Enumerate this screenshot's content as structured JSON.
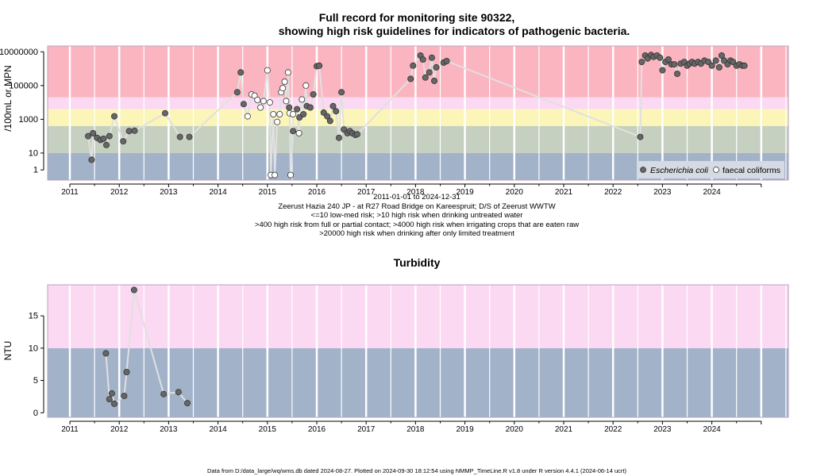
{
  "colors": {
    "low_band": "#a2b2c9",
    "olive_band": "#c5d0c0",
    "yellow_band": "#fbf5b8",
    "pink_band": "#fbd9f2",
    "red_band": "#fbb5c1",
    "grid": "#ffffff",
    "line": "#e0e0e0",
    "ecoli_point": "#666666",
    "faecal_point": "#ffffff",
    "axis": "#000000",
    "frame": "#b9a4bf"
  },
  "chart_data": [
    {
      "type": "scatter",
      "title_line1": "Full record for monitoring site 90322,",
      "title_line2": "showing high risk guidelines for indicators of pathogenic bacteria.",
      "ylabel": "/100mL or MPN",
      "y_scale": "log",
      "xlim": [
        2010.55,
        2025.55
      ],
      "ylim": [
        0.25,
        22000000
      ],
      "yticks": [
        {
          "value": 10000000,
          "label": "10000000"
        },
        {
          "value": 100000,
          "label": "100000"
        },
        {
          "value": 1000,
          "label": "1000"
        },
        {
          "value": 10,
          "label": "10"
        },
        {
          "value": 1,
          "label": "1"
        }
      ],
      "xticks": [
        {
          "value": 2011,
          "label": "2011"
        },
        {
          "value": 2012,
          "label": "2012"
        },
        {
          "value": 2013,
          "label": "2013"
        },
        {
          "value": 2014,
          "label": "2014"
        },
        {
          "value": 2015,
          "label": "2015"
        },
        {
          "value": 2016,
          "label": "2016"
        },
        {
          "value": 2017,
          "label": "2017"
        },
        {
          "value": 2018,
          "label": "2018"
        },
        {
          "value": 2019,
          "label": "2019"
        },
        {
          "value": 2020,
          "label": "2020"
        },
        {
          "value": 2021,
          "label": "2021"
        },
        {
          "value": 2022,
          "label": "2022"
        },
        {
          "value": 2023,
          "label": "2023"
        },
        {
          "value": 2024,
          "label": "2024"
        }
      ],
      "bands": [
        {
          "from": 0.25,
          "to": 10,
          "color": "low_band"
        },
        {
          "from": 10,
          "to": 400,
          "color": "olive_band"
        },
        {
          "from": 400,
          "to": 4000,
          "color": "yellow_band"
        },
        {
          "from": 4000,
          "to": 20000,
          "color": "pink_band"
        },
        {
          "from": 20000,
          "to": 22000000,
          "color": "red_band"
        }
      ],
      "legend_position": "bottom-right",
      "series": [
        {
          "name": "Escherichia coli",
          "marker": "filled",
          "points": [
            [
              2011.37,
              100
            ],
            [
              2011.44,
              4
            ],
            [
              2011.47,
              150
            ],
            [
              2011.55,
              80
            ],
            [
              2011.62,
              60
            ],
            [
              2011.68,
              70
            ],
            [
              2011.74,
              30
            ],
            [
              2011.8,
              100
            ],
            [
              2011.9,
              1500
            ],
            [
              2012.08,
              50
            ],
            [
              2012.2,
              200
            ],
            [
              2012.31,
              210
            ],
            [
              2012.93,
              2300
            ],
            [
              2013.23,
              90
            ],
            [
              2013.42,
              90
            ],
            [
              2014.39,
              40000
            ],
            [
              2014.46,
              600000
            ],
            [
              2014.52,
              8000
            ],
            [
              2015.44,
              5000
            ],
            [
              2015.52,
              200
            ],
            [
              2015.6,
              4000
            ],
            [
              2015.65,
              1300
            ],
            [
              2015.73,
              2000
            ],
            [
              2015.8,
              6000
            ],
            [
              2015.87,
              5000
            ],
            [
              2015.93,
              30000
            ],
            [
              2016.0,
              1400000
            ],
            [
              2016.05,
              1500000
            ],
            [
              2016.14,
              2500
            ],
            [
              2016.21,
              1500
            ],
            [
              2016.27,
              800
            ],
            [
              2016.33,
              6000
            ],
            [
              2016.39,
              3000
            ],
            [
              2016.45,
              80
            ],
            [
              2016.5,
              40000
            ],
            [
              2016.55,
              250
            ],
            [
              2016.62,
              150
            ],
            [
              2016.67,
              200
            ],
            [
              2016.72,
              150
            ],
            [
              2016.78,
              120
            ],
            [
              2016.82,
              130
            ],
            [
              2017.9,
              250000
            ],
            [
              2017.95,
              1500000
            ],
            [
              2018.1,
              6000000
            ],
            [
              2018.15,
              3500000
            ],
            [
              2018.2,
              300000
            ],
            [
              2018.28,
              600000
            ],
            [
              2018.33,
              4500000
            ],
            [
              2018.38,
              190000
            ],
            [
              2018.42,
              1200000
            ],
            [
              2018.57,
              2300000
            ],
            [
              2018.63,
              2800000
            ],
            [
              2022.55,
              90
            ],
            [
              2022.58,
              2500000
            ],
            [
              2022.65,
              6000000
            ],
            [
              2022.7,
              4000000
            ],
            [
              2022.77,
              6500000
            ],
            [
              2022.82,
              5000000
            ],
            [
              2022.89,
              6000000
            ],
            [
              2022.95,
              4500000
            ],
            [
              2023.0,
              800000
            ],
            [
              2023.06,
              2500000
            ],
            [
              2023.12,
              3500000
            ],
            [
              2023.18,
              1800000
            ],
            [
              2023.24,
              1800000
            ],
            [
              2023.3,
              500000
            ],
            [
              2023.37,
              2000000
            ],
            [
              2023.44,
              2500000
            ],
            [
              2023.5,
              1500000
            ],
            [
              2023.55,
              2000000
            ],
            [
              2023.6,
              2500000
            ],
            [
              2023.65,
              2000000
            ],
            [
              2023.72,
              2500000
            ],
            [
              2023.78,
              2000000
            ],
            [
              2023.85,
              3000000
            ],
            [
              2023.93,
              2500000
            ],
            [
              2024.0,
              1500000
            ],
            [
              2024.08,
              3000000
            ],
            [
              2024.15,
              1200000
            ],
            [
              2024.2,
              6000000
            ],
            [
              2024.25,
              3000000
            ],
            [
              2024.32,
              1800000
            ],
            [
              2024.38,
              3000000
            ],
            [
              2024.43,
              2500000
            ],
            [
              2024.5,
              1500000
            ],
            [
              2024.56,
              1800000
            ],
            [
              2024.62,
              1500000
            ],
            [
              2024.66,
              1500000
            ]
          ]
        },
        {
          "name": "faecal coliforms",
          "marker": "open",
          "points": [
            [
              2014.6,
              1500
            ],
            [
              2014.68,
              30000
            ],
            [
              2014.74,
              25000
            ],
            [
              2014.8,
              14000
            ],
            [
              2014.86,
              5000
            ],
            [
              2014.92,
              12000
            ],
            [
              2015.0,
              800000
            ],
            [
              2015.05,
              10000
            ],
            [
              2015.07,
              0.5
            ],
            [
              2015.12,
              2000
            ],
            [
              2015.15,
              0.5
            ],
            [
              2015.2,
              700
            ],
            [
              2015.25,
              2000
            ],
            [
              2015.28,
              40000
            ],
            [
              2015.31,
              70000
            ],
            [
              2015.35,
              170000
            ],
            [
              2015.38,
              12000
            ],
            [
              2015.42,
              600000
            ],
            [
              2015.45,
              2300
            ],
            [
              2015.47,
              0.5
            ],
            [
              2015.52,
              2000
            ],
            [
              2015.64,
              150
            ],
            [
              2015.7,
              15000
            ],
            [
              2015.78,
              100000
            ]
          ]
        }
      ]
    },
    {
      "type": "scatter",
      "title": "Turbidity",
      "ylabel": "NTU",
      "xlim": [
        2010.55,
        2025.55
      ],
      "ylim": [
        -0.7,
        19.8
      ],
      "yticks": [
        {
          "value": 0,
          "label": "0"
        },
        {
          "value": 5,
          "label": "5"
        },
        {
          "value": 10,
          "label": "10"
        },
        {
          "value": 15,
          "label": "15"
        }
      ],
      "xticks": [
        {
          "value": 2011,
          "label": "2011"
        },
        {
          "value": 2012,
          "label": "2012"
        },
        {
          "value": 2013,
          "label": "2013"
        },
        {
          "value": 2014,
          "label": "2014"
        },
        {
          "value": 2015,
          "label": "2015"
        },
        {
          "value": 2016,
          "label": "2016"
        },
        {
          "value": 2017,
          "label": "2017"
        },
        {
          "value": 2018,
          "label": "2018"
        },
        {
          "value": 2019,
          "label": "2019"
        },
        {
          "value": 2020,
          "label": "2020"
        },
        {
          "value": 2021,
          "label": "2021"
        },
        {
          "value": 2022,
          "label": "2022"
        },
        {
          "value": 2023,
          "label": "2023"
        },
        {
          "value": 2024,
          "label": "2024"
        }
      ],
      "bands": [
        {
          "from": -0.7,
          "to": 10,
          "color": "low_band"
        },
        {
          "from": 10,
          "to": 19.8,
          "color": "pink_band"
        }
      ],
      "series": [
        {
          "marker": "filled",
          "points": [
            [
              2011.73,
              9.2
            ],
            [
              2011.8,
              2.1
            ],
            [
              2011.85,
              3.0
            ],
            [
              2011.9,
              1.4
            ],
            [
              2012.1,
              2.6
            ],
            [
              2012.15,
              6.3
            ],
            [
              2012.3,
              19.0
            ],
            [
              2012.9,
              2.9
            ],
            [
              2013.2,
              3.2
            ],
            [
              2013.38,
              1.5
            ]
          ]
        }
      ]
    }
  ],
  "subtitle": {
    "date_range": "2011-01-01 to 2024-12-31",
    "site": "Zeerust Hazia 240 JP - at R27 Road Bridge on Kareespruit; D/S of Zeerust WWTW",
    "note1": "<=10 low-med risk; >10 high risk when drinking untreated water",
    "note2": ">400 high risk from full or partial contact; >4000 high risk when irrigating crops that are eaten raw",
    "note3": ">20000 high risk when drinking after only limited treatment"
  },
  "footer": "Data from D:/data_large/wq/wms.db dated 2024-08-27. Plotted on 2024-09-30 18:12:54 using NMMP_TimeLine.R v1.8 under R version 4.4.1 (2024-06-14 ucrt)"
}
